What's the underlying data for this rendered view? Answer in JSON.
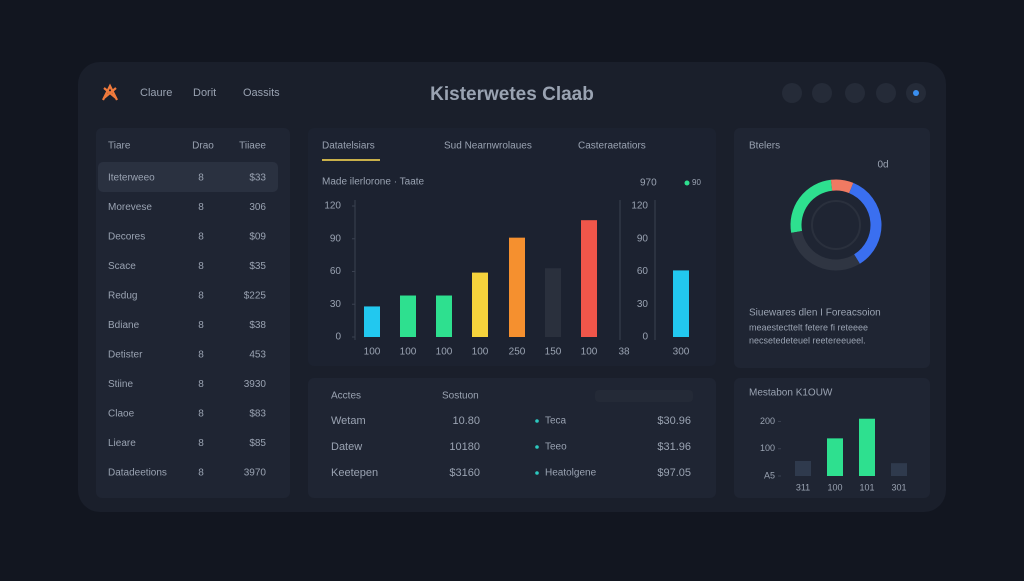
{
  "header": {
    "nav": [
      "Claure",
      "Dorit",
      "Oassits"
    ],
    "title": "Kisterwetes Claab"
  },
  "left_table": {
    "columns": [
      "Tiare",
      "Drao",
      "Tiiaee"
    ],
    "rows": [
      {
        "name": "Iteterweeo",
        "qty": "8",
        "value": "$33",
        "color": "#e8ecf2"
      },
      {
        "name": "Morevese",
        "qty": "8",
        "value": "306",
        "color": "#2cc9c0"
      },
      {
        "name": "Decores",
        "qty": "8",
        "value": "$09",
        "color": "#2cc9c0"
      },
      {
        "name": "Scace",
        "qty": "8",
        "value": "$35",
        "color": "#2cc9c0"
      },
      {
        "name": "Redug",
        "qty": "8",
        "value": "$225",
        "color": "#e8ecf2"
      },
      {
        "name": "Bdiane",
        "qty": "8",
        "value": "$38",
        "color": "#f0564a"
      },
      {
        "name": "Detister",
        "qty": "8",
        "value": "453",
        "color": "#2cc9c0"
      },
      {
        "name": "Stiine",
        "qty": "8",
        "value": "3930",
        "color": "#e8ecf2"
      },
      {
        "name": "Claoe",
        "qty": "8",
        "value": "$83",
        "color": "#f07a3c"
      },
      {
        "name": "Lieare",
        "qty": "8",
        "value": "$85",
        "color": "#f07a3c"
      },
      {
        "name": "Datadeetions",
        "qty": "8",
        "value": "3970",
        "color": "#e8ecf2"
      }
    ]
  },
  "main_chart": {
    "tabs": [
      "Datatelsiars",
      "Sud Nearnwrolaues",
      "Casteraetatiors"
    ],
    "subtitle": "Made ilerlorone · Taate",
    "total": "970",
    "badge": "90",
    "ylim": [
      0,
      120
    ],
    "yticks": [
      0,
      30,
      60,
      90,
      120
    ],
    "categories": [
      "100",
      "100",
      "100",
      "100",
      "250",
      "150",
      "100"
    ],
    "values": [
      28,
      38,
      38,
      59,
      91,
      63,
      107
    ],
    "colors": [
      "#22c8ef",
      "#2ee08f",
      "#2ee08f",
      "#f5d33c",
      "#f5902f",
      "#2a303d",
      "#f0564a"
    ],
    "side_label": "38",
    "side_value": 61,
    "side_category": "300",
    "side_color": "#22c8ef"
  },
  "bottom_table": {
    "columns": [
      "Acctes",
      "Sostuon"
    ],
    "rows": [
      {
        "name": "Wetam",
        "amount": "10.80",
        "tag": "Teca",
        "price": "$30.96",
        "color": "#e8ecf2"
      },
      {
        "name": "Datew",
        "amount": "10180",
        "tag": "Teeo",
        "price": "$31.96",
        "color": "#e8ecf2"
      },
      {
        "name": "Keetepen",
        "amount": "$3160",
        "tag": "Heatolgene",
        "price": "$97.05",
        "color": "#f5902f"
      }
    ]
  },
  "donut": {
    "title": "Btelers",
    "label": "0d",
    "values": [
      26,
      8,
      35,
      31
    ],
    "colors": [
      "#2ee08f",
      "#f07a62",
      "#3a6ff0",
      "#2f3542"
    ],
    "caption": "Siuewares dlen I Foreacsoion",
    "lines": [
      "meaestecttelt fetere fi reteeee",
      "necsetedeteuel reetereeueel."
    ]
  },
  "mini_chart": {
    "title": "Mestabon K1OUW",
    "ylim": [
      0,
      220
    ],
    "yticks": [
      {
        "value": 0,
        "label": "A5"
      },
      100,
      200
    ],
    "categories": [
      "311",
      "100",
      "101",
      "301"
    ],
    "values": [
      55,
      138,
      210,
      47
    ],
    "colors": [
      "#2f3a4d",
      "#2ee08f",
      "#2ee08f",
      "#2f3a4d"
    ]
  }
}
